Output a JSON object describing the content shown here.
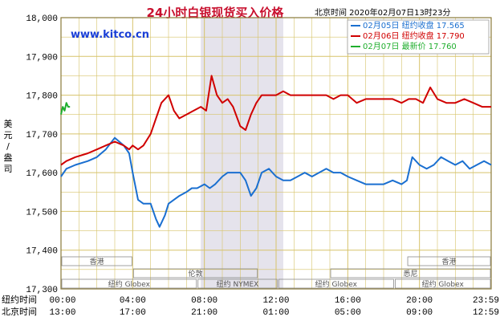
{
  "chart_data": {
    "type": "line",
    "title": "24小时白银现货买入价格",
    "header_right": "北京时间  2020年02月07日13时23分",
    "watermark": "www.kitco.cn",
    "ylabel": "美元/盎司",
    "ylim": [
      17.3,
      18.0
    ],
    "yticks": [
      "18,000",
      "17,900",
      "17,800",
      "17,700",
      "17,600",
      "17,500",
      "17,400",
      "17,300"
    ],
    "ytick_values": [
      18.0,
      17.9,
      17.8,
      17.7,
      17.6,
      17.5,
      17.4,
      17.3
    ],
    "x_hours": [
      0,
      24
    ],
    "row_labels": {
      "ny": "纽约时间",
      "bj": "北京时间"
    },
    "ny_ticks": [
      "00:00",
      "04:00",
      "08:00",
      "12:00",
      "16:00",
      "20:00",
      "23:59"
    ],
    "bj_ticks": [
      "13:00",
      "17:00",
      "21:00",
      "01:00",
      "05:00",
      "09:00",
      "12:59"
    ],
    "tick_hours": [
      0,
      4,
      8,
      12,
      16,
      20,
      24
    ],
    "shade_hours": [
      7.8,
      12.4
    ],
    "markets": {
      "row1": [
        {
          "label": "香港",
          "start": 0,
          "end": 4
        },
        {
          "label": "香港",
          "start": 19.3,
          "end": 24
        }
      ],
      "row2": [
        {
          "label": "伦敦",
          "start": 4,
          "end": 11
        },
        {
          "label": "悉尼",
          "start": 15,
          "end": 24
        }
      ],
      "row3": [
        {
          "label": "纽约 Globex",
          "start": 0,
          "end": 7.6
        },
        {
          "label": "纽约 NYMEX",
          "start": 7.6,
          "end": 12.1
        },
        {
          "label": "纽约 Globex",
          "start": 12.1,
          "end": 18.6
        },
        {
          "label": "纽约 Globex",
          "start": 18.6,
          "end": 24
        }
      ]
    },
    "series": [
      {
        "name": "02月05日  纽约收盘 17.565",
        "color": "#1a6fd0",
        "x": [
          0,
          0.3,
          0.8,
          1.5,
          2.0,
          2.5,
          3.0,
          3.5,
          3.8,
          4.0,
          4.3,
          4.6,
          5.0,
          5.3,
          5.5,
          5.8,
          6.0,
          6.3,
          6.6,
          7.0,
          7.3,
          7.6,
          8.0,
          8.3,
          8.6,
          9.0,
          9.3,
          9.6,
          10.0,
          10.3,
          10.6,
          10.9,
          11.2,
          11.6,
          12.0,
          12.4,
          12.8,
          13.2,
          13.6,
          14.0,
          14.4,
          14.8,
          15.2,
          15.6,
          16.0,
          16.5,
          17.0,
          17.5,
          18.0,
          18.5,
          19.0,
          19.3,
          19.6,
          20.0,
          20.4,
          20.8,
          21.2,
          21.6,
          22.0,
          22.4,
          22.8,
          23.2,
          23.6,
          24.0
        ],
        "y": [
          17.59,
          17.61,
          17.62,
          17.63,
          17.64,
          17.66,
          17.69,
          17.67,
          17.65,
          17.6,
          17.53,
          17.52,
          17.52,
          17.48,
          17.46,
          17.49,
          17.52,
          17.53,
          17.54,
          17.55,
          17.56,
          17.56,
          17.57,
          17.56,
          17.57,
          17.59,
          17.6,
          17.6,
          17.6,
          17.58,
          17.54,
          17.56,
          17.6,
          17.61,
          17.59,
          17.58,
          17.58,
          17.59,
          17.6,
          17.59,
          17.6,
          17.61,
          17.6,
          17.6,
          17.59,
          17.58,
          17.57,
          17.57,
          17.57,
          17.58,
          17.57,
          17.58,
          17.64,
          17.62,
          17.61,
          17.62,
          17.64,
          17.63,
          17.62,
          17.63,
          17.61,
          17.62,
          17.63,
          17.62
        ]
      },
      {
        "name": "02月06日  纽约收盘 17.790",
        "color": "#d00000",
        "x": [
          0,
          0.3,
          0.8,
          1.5,
          2.0,
          2.5,
          3.0,
          3.5,
          3.8,
          4.0,
          4.3,
          4.6,
          5.0,
          5.3,
          5.6,
          6.0,
          6.3,
          6.6,
          7.0,
          7.4,
          7.8,
          8.1,
          8.4,
          8.7,
          9.0,
          9.3,
          9.6,
          10.0,
          10.3,
          10.6,
          10.9,
          11.2,
          11.6,
          12.0,
          12.4,
          12.8,
          13.2,
          13.6,
          14.0,
          14.4,
          14.8,
          15.2,
          15.6,
          16.0,
          16.5,
          17.0,
          17.5,
          18.0,
          18.5,
          19.0,
          19.4,
          19.8,
          20.2,
          20.6,
          21.0,
          21.5,
          22.0,
          22.5,
          23.0,
          23.5,
          24.0
        ],
        "y": [
          17.62,
          17.63,
          17.64,
          17.65,
          17.66,
          17.67,
          17.68,
          17.67,
          17.66,
          17.67,
          17.66,
          17.67,
          17.7,
          17.74,
          17.78,
          17.8,
          17.76,
          17.74,
          17.75,
          17.76,
          17.77,
          17.76,
          17.85,
          17.8,
          17.78,
          17.79,
          17.77,
          17.72,
          17.71,
          17.75,
          17.78,
          17.8,
          17.8,
          17.8,
          17.81,
          17.8,
          17.8,
          17.8,
          17.8,
          17.8,
          17.8,
          17.79,
          17.8,
          17.8,
          17.78,
          17.79,
          17.79,
          17.79,
          17.79,
          17.78,
          17.79,
          17.79,
          17.78,
          17.82,
          17.79,
          17.78,
          17.78,
          17.79,
          17.78,
          17.77,
          17.77
        ]
      },
      {
        "name": "02月07日  最新价 17.760",
        "color": "#1fae2d",
        "x": [
          0,
          0.1,
          0.2,
          0.3,
          0.4,
          0.5
        ],
        "y": [
          17.75,
          17.77,
          17.76,
          17.78,
          17.77,
          17.77
        ]
      }
    ],
    "legend_placement": "top-right",
    "grid": true
  }
}
